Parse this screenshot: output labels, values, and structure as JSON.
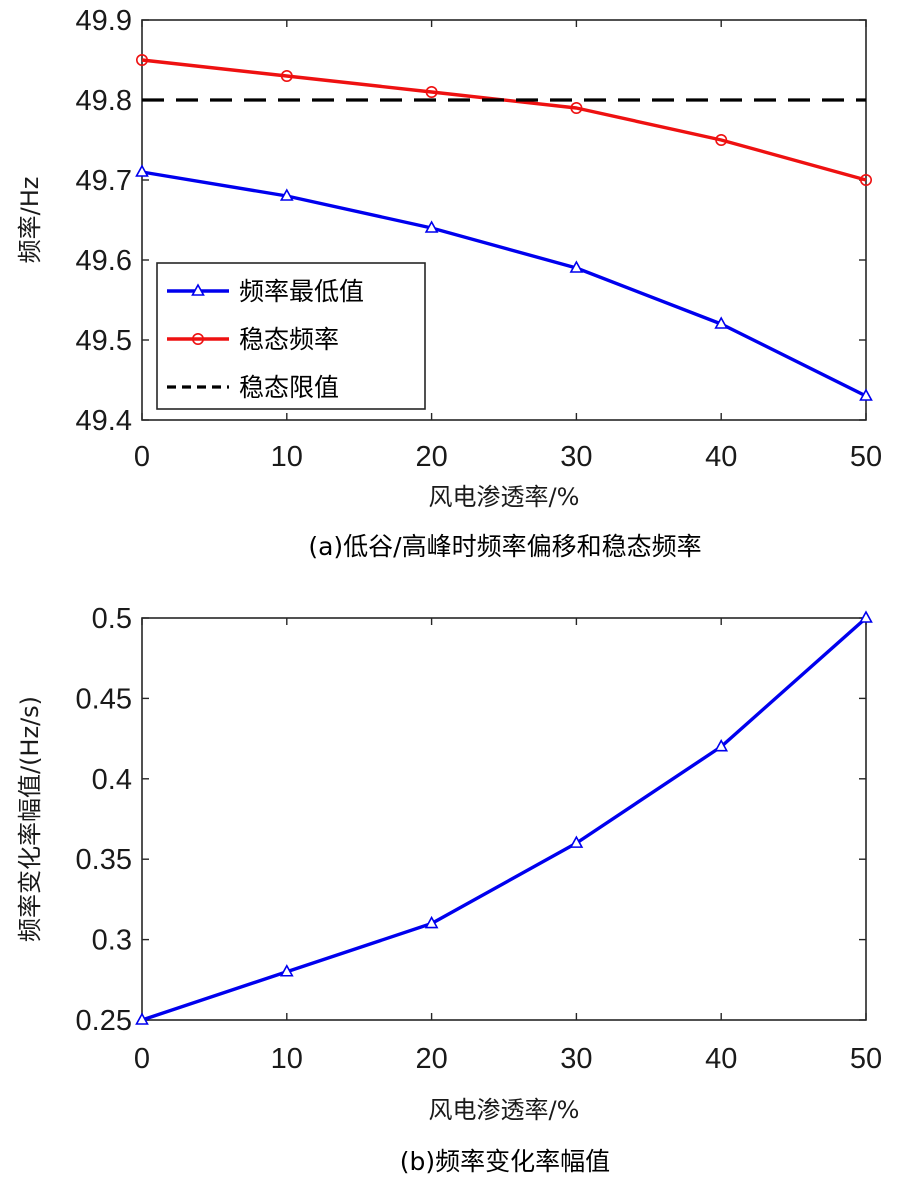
{
  "chart_data": [
    {
      "type": "line",
      "caption": "(a)低谷/高峰时频率偏移和稳态频率",
      "xlabel": "风电渗透率/%",
      "ylabel": "频率/Hz",
      "xlim": [
        0,
        50
      ],
      "ylim": [
        49.4,
        49.9
      ],
      "xticks": [
        "0",
        "10",
        "20",
        "30",
        "40",
        "50"
      ],
      "yticks": [
        "49.4",
        "49.5",
        "49.6",
        "49.7",
        "49.8",
        "49.9"
      ],
      "x": [
        0,
        10,
        20,
        30,
        40,
        50
      ],
      "series": [
        {
          "name": "频率最低值",
          "legend_label": " 频率最低值",
          "color": "#0000ee",
          "marker": "triangle",
          "values": [
            49.71,
            49.68,
            49.64,
            49.59,
            49.52,
            49.43
          ]
        },
        {
          "name": "稳态频率",
          "legend_label": "稳态频率",
          "color": "#ee1111",
          "marker": "circle",
          "values": [
            49.85,
            49.83,
            49.81,
            49.79,
            49.75,
            49.7
          ]
        },
        {
          "name": "稳态限值",
          "legend_label": "稳态限值",
          "color": "#000000",
          "marker": "none",
          "dashed": true,
          "values": [
            49.8,
            49.8,
            49.8,
            49.8,
            49.8,
            49.8
          ]
        }
      ],
      "legend_position": "lower-left"
    },
    {
      "type": "line",
      "caption": "(b)频率变化率幅值",
      "xlabel": "风电渗透率/%",
      "ylabel": "频率变化率幅值/(Hz/s)",
      "xlim": [
        0,
        50
      ],
      "ylim": [
        0.25,
        0.5
      ],
      "xticks": [
        "0",
        "10",
        "20",
        "30",
        "40",
        "50"
      ],
      "yticks": [
        "0.25",
        "0.3",
        "0.35",
        "0.4",
        "0.45",
        "0.5"
      ],
      "x": [
        0,
        10,
        20,
        30,
        40,
        50
      ],
      "series": [
        {
          "name": "频率变化率幅值",
          "color": "#0000ee",
          "marker": "triangle",
          "values": [
            0.25,
            0.28,
            0.31,
            0.36,
            0.42,
            0.5
          ]
        }
      ]
    }
  ]
}
